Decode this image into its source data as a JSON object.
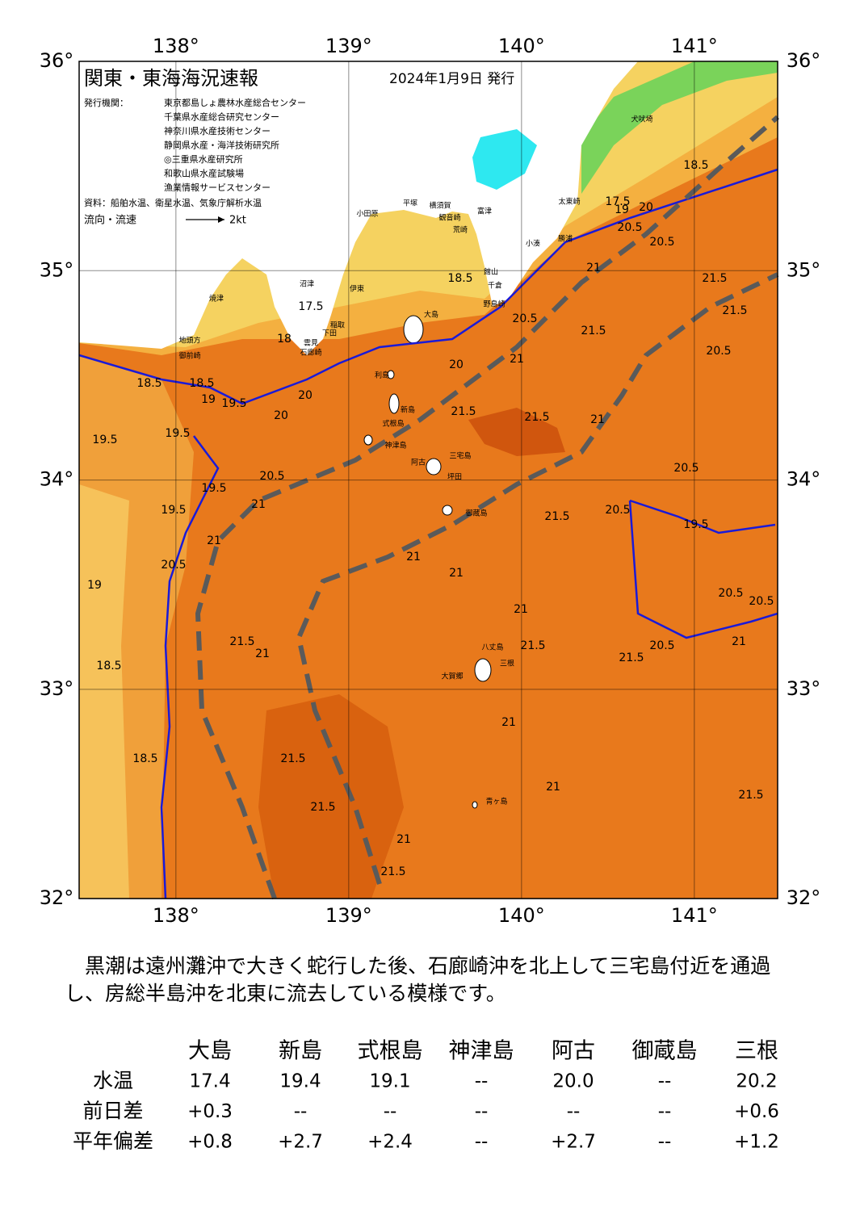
{
  "map": {
    "title": "関東・東海海況速報",
    "date": "2024年1月9日 発行",
    "issuer_label": "発行機関：",
    "issuers": [
      "東京都島しょ農林水産総合センター",
      "千葉県水産総合研究センター",
      "神奈川県水産技術センター",
      "静岡県水産・海洋技術研究所",
      "◎三重県水産研究所",
      "和歌山県水産試験場",
      "漁業情報サービスセンター"
    ],
    "source": "資料：船舶水温、衛星水温、気象庁解析水温",
    "flow_label": "流向・流速",
    "flow_scale": "2kt",
    "lon_ticks": [
      {
        "value": 138,
        "label": "138°"
      },
      {
        "value": 139,
        "label": "139°"
      },
      {
        "value": 140,
        "label": "140°"
      },
      {
        "value": 141,
        "label": "141°"
      }
    ],
    "lat_ticks": [
      {
        "value": 36,
        "label": "36°"
      },
      {
        "value": 35,
        "label": "35°"
      },
      {
        "value": 34,
        "label": "34°"
      },
      {
        "value": 33,
        "label": "33°"
      },
      {
        "value": 32,
        "label": "32°"
      }
    ],
    "places": [
      "大島",
      "利島",
      "新島",
      "式根島",
      "神津島",
      "三宅島",
      "阿古",
      "坪田",
      "御蔵島",
      "八丈島",
      "三根",
      "大賀郷",
      "青ヶ島",
      "小田原",
      "平塚",
      "横須賀",
      "観音崎",
      "荒崎",
      "富津",
      "館山",
      "千倉",
      "野島崎",
      "小湊",
      "勝浦",
      "太東崎",
      "犬吠埼",
      "沼津",
      "伊東",
      "稲取",
      "下田",
      "雲見",
      "石廊崎",
      "焼津",
      "地頭方",
      "御前崎"
    ],
    "contour_labels": [
      "18.5",
      "18.5",
      "19",
      "19.5",
      "20",
      "20",
      "19.5",
      "19.5",
      "20.5",
      "21",
      "19.5",
      "19.5",
      "20.5",
      "19",
      "21",
      "21.5",
      "21",
      "18.5",
      "18.5",
      "21.5",
      "21.5",
      "21",
      "21.5",
      "21.5",
      "21.5",
      "21",
      "21.5",
      "20.5",
      "21",
      "20",
      "21.5",
      "21.5",
      "20.5",
      "21",
      "20.5",
      "20.5",
      "21.5",
      "21",
      "21",
      "21",
      "21.5",
      "21.5",
      "20.5",
      "21",
      "20.5",
      "20.5",
      "21",
      "21",
      "21.5",
      "17.5",
      "19",
      "20",
      "20.5",
      "18.5",
      "17.5",
      "18",
      "18.5",
      "20.5",
      "19.5"
    ]
  },
  "summary": "黒潮は遠州灘沖で大きく蛇行した後、石廊崎沖を北上して三宅島付近を通過し、房総半島沖を北東に流去している模様です。",
  "table": {
    "columns": [
      "大島",
      "新島",
      "式根島",
      "神津島",
      "阿古",
      "御蔵島",
      "三根"
    ],
    "rows": [
      {
        "label": "水温",
        "values": [
          "17.4",
          "19.4",
          "19.1",
          "--",
          "20.0",
          "--",
          "20.2"
        ]
      },
      {
        "label": "前日差",
        "values": [
          "+0.3",
          "--",
          "--",
          "--",
          "--",
          "--",
          "+0.6"
        ]
      },
      {
        "label": "平年偏差",
        "values": [
          "+0.8",
          "+2.7",
          "+2.4",
          "--",
          "+2.7",
          "--",
          "+1.2"
        ]
      }
    ]
  }
}
